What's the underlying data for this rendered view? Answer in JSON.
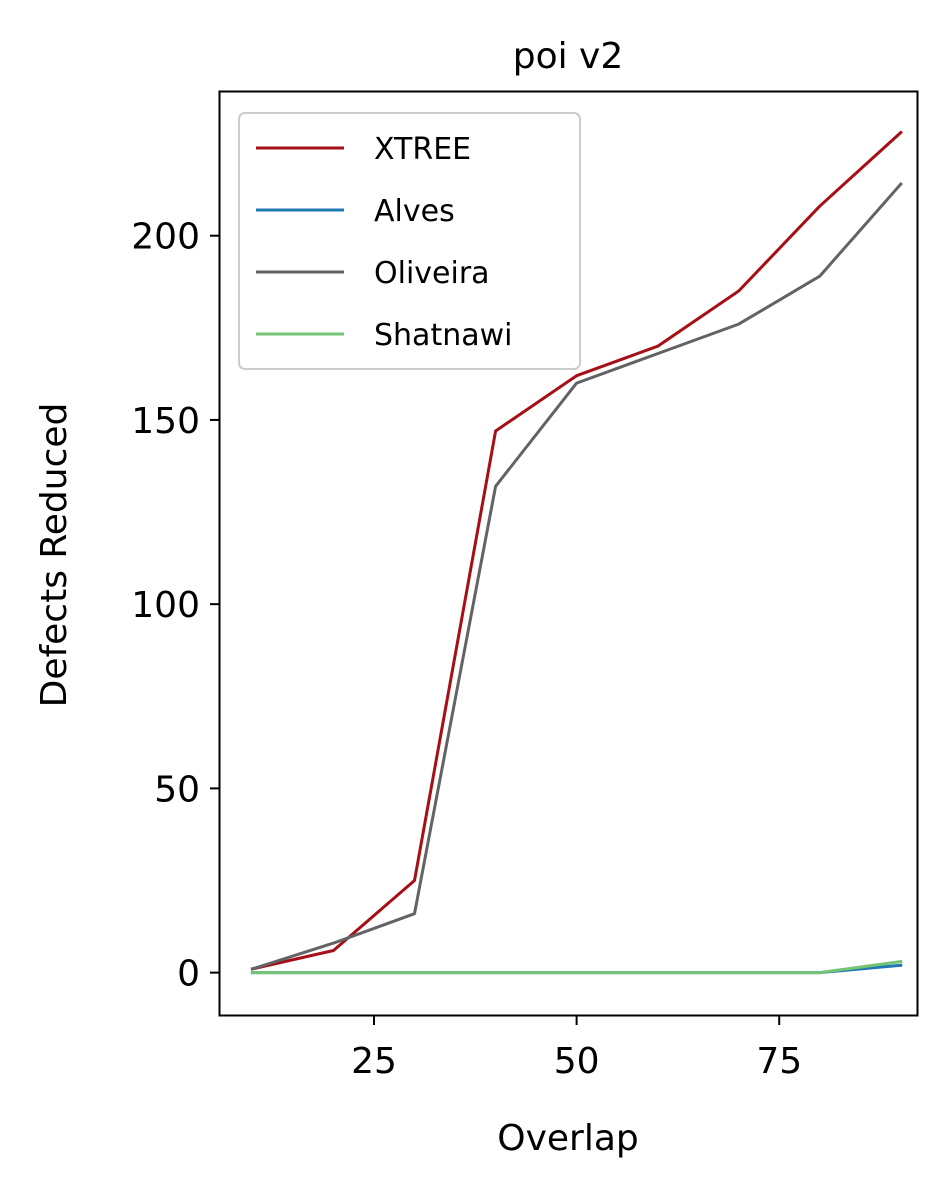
{
  "chart_data": {
    "type": "line",
    "title": "poi v2",
    "xlabel": "Overlap",
    "ylabel": "Defects Reduced",
    "xlim": [
      6,
      92
    ],
    "ylim": [
      -11.5,
      239
    ],
    "xticks": [
      25,
      50,
      75
    ],
    "xtick_labels": [
      "25",
      "50",
      "75"
    ],
    "yticks": [
      0,
      50,
      100,
      150,
      200
    ],
    "ytick_labels": [
      "0",
      "50",
      "100",
      "150",
      "200"
    ],
    "grid": false,
    "legend_position": "top-left",
    "x": [
      10,
      20,
      30,
      40,
      50,
      60,
      70,
      80,
      90
    ],
    "series": [
      {
        "name": "XTREE",
        "color": "#a50f15",
        "values": [
          1,
          6,
          25,
          147,
          162,
          170,
          185,
          208,
          228
        ]
      },
      {
        "name": "Alves",
        "color": "#1f78b4",
        "values": [
          0,
          0,
          0,
          0,
          0,
          0,
          0,
          0,
          2
        ]
      },
      {
        "name": "Oliveira",
        "color": "#636363",
        "values": [
          1,
          8,
          16,
          132,
          160,
          168,
          176,
          189,
          214
        ]
      },
      {
        "name": "Shatnawi",
        "color": "#74c476",
        "values": [
          0,
          0,
          0,
          0,
          0,
          0,
          0,
          0,
          3
        ]
      }
    ]
  }
}
